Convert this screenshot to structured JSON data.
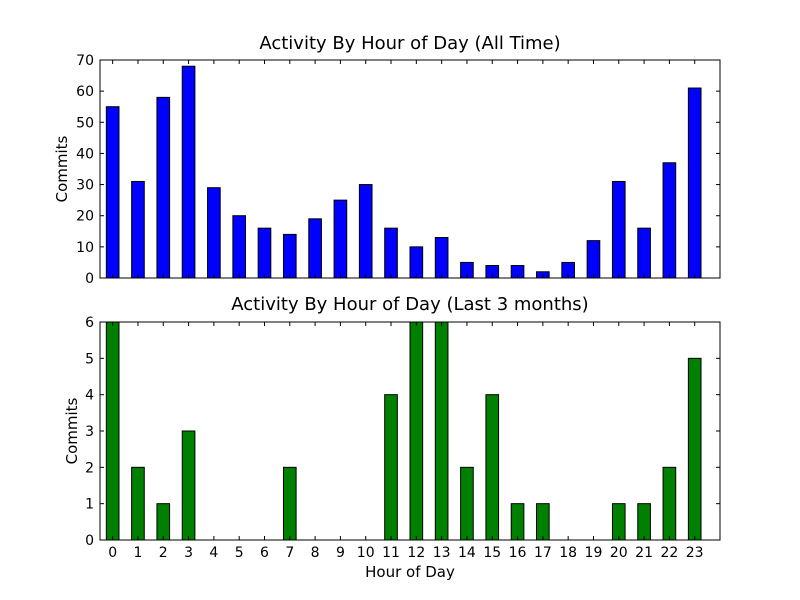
{
  "chart_data": [
    {
      "type": "bar",
      "title": "Activity By Hour of Day (All Time)",
      "xlabel": "",
      "ylabel": "Commits",
      "categories": [
        "0",
        "1",
        "2",
        "3",
        "4",
        "5",
        "6",
        "7",
        "8",
        "9",
        "10",
        "11",
        "12",
        "13",
        "14",
        "15",
        "16",
        "17",
        "18",
        "19",
        "20",
        "21",
        "22",
        "23"
      ],
      "values": [
        55,
        31,
        58,
        68,
        29,
        20,
        16,
        14,
        19,
        25,
        30,
        16,
        10,
        13,
        5,
        4,
        4,
        2,
        5,
        12,
        31,
        16,
        37,
        61
      ],
      "ylim": [
        0,
        70
      ],
      "yticks": [
        0,
        10,
        20,
        30,
        40,
        50,
        60,
        70
      ],
      "xlim": [
        -0.5,
        24
      ],
      "show_xticklabels": false,
      "color": "#0000ff",
      "grid": false
    },
    {
      "type": "bar",
      "title": "Activity By Hour of Day (Last 3 months)",
      "xlabel": "Hour of Day",
      "ylabel": "Commits",
      "categories": [
        "0",
        "1",
        "2",
        "3",
        "4",
        "5",
        "6",
        "7",
        "8",
        "9",
        "10",
        "11",
        "12",
        "13",
        "14",
        "15",
        "16",
        "17",
        "18",
        "19",
        "20",
        "21",
        "22",
        "23"
      ],
      "values": [
        6,
        2,
        1,
        3,
        0,
        0,
        0,
        2,
        0,
        0,
        0,
        4,
        6,
        6,
        2,
        4,
        1,
        1,
        0,
        0,
        1,
        1,
        2,
        5
      ],
      "ylim": [
        0,
        6
      ],
      "yticks": [
        0,
        1,
        2,
        3,
        4,
        5,
        6
      ],
      "xlim": [
        -0.5,
        24
      ],
      "show_xticklabels": true,
      "color": "#008000",
      "grid": false
    }
  ]
}
